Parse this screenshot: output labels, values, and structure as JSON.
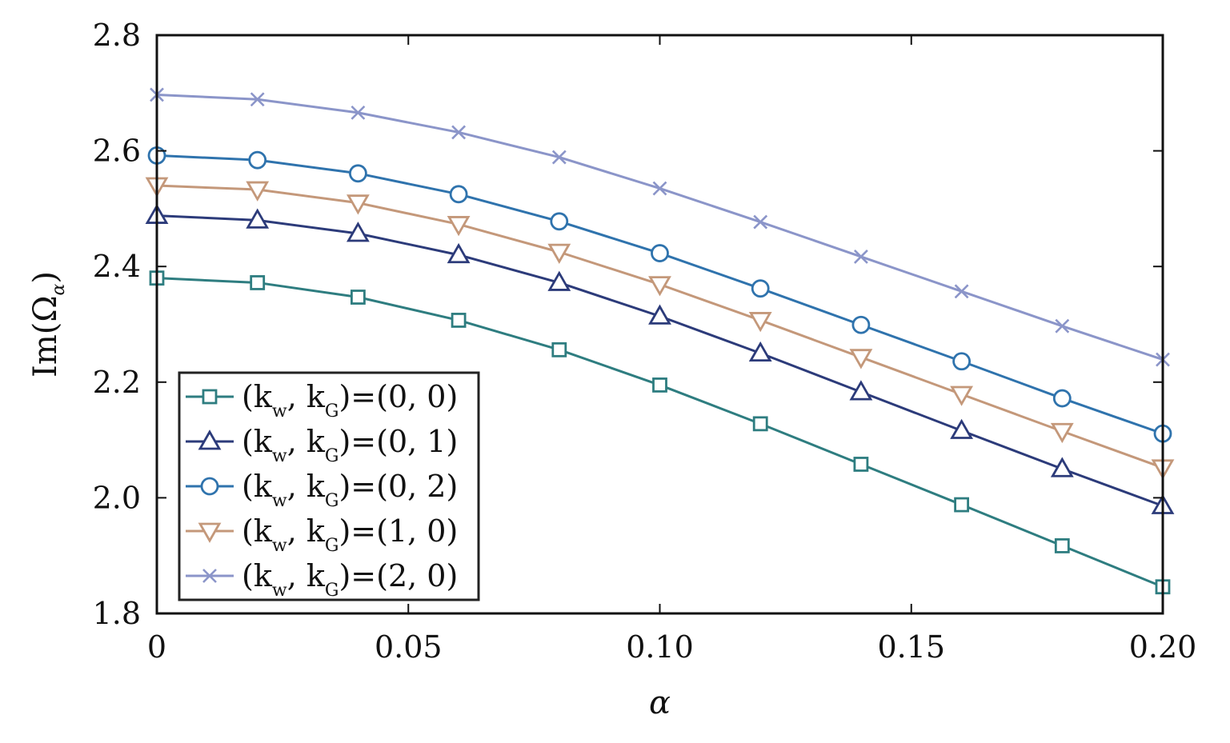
{
  "chart_data": {
    "type": "line",
    "xlabel": "α",
    "ylabel": "Im(Ω",
    "ylabel_sub": "α",
    "xlim": [
      0,
      0.2
    ],
    "ylim": [
      1.8,
      2.8
    ],
    "x_ticks": [
      {
        "value": 0,
        "label": "0"
      },
      {
        "value": 0.05,
        "label": "0.05"
      },
      {
        "value": 0.1,
        "label": "0.10"
      },
      {
        "value": 0.15,
        "label": "0.15"
      },
      {
        "value": 0.2,
        "label": "0.20"
      }
    ],
    "y_ticks": [
      {
        "value": 1.8,
        "label": "1.8"
      },
      {
        "value": 2.0,
        "label": "2.0"
      },
      {
        "value": 2.2,
        "label": "2.2"
      },
      {
        "value": 2.4,
        "label": "2.4"
      },
      {
        "value": 2.6,
        "label": "2.6"
      },
      {
        "value": 2.8,
        "label": "2.8"
      }
    ],
    "grid": false,
    "legend_position": "bottom-left",
    "x": [
      0,
      0.02,
      0.04,
      0.06,
      0.08,
      0.1,
      0.12,
      0.14,
      0.16,
      0.18,
      0.2
    ],
    "series": [
      {
        "name_prefix": "(k",
        "name_sub1": "w",
        "name_mid": ", k",
        "name_sub2": "G",
        "name_suffix": ")=(0, 0)",
        "marker": "square",
        "color": "#2e7d80",
        "values": [
          2.38,
          2.372,
          2.347,
          2.307,
          2.256,
          2.195,
          2.128,
          2.058,
          1.988,
          1.917,
          1.846
        ]
      },
      {
        "name_prefix": "(k",
        "name_sub1": "w",
        "name_mid": ", k",
        "name_sub2": "G",
        "name_suffix": ")=(0, 1)",
        "marker": "triangle-up",
        "color": "#2c3b7a",
        "values": [
          2.488,
          2.48,
          2.457,
          2.42,
          2.372,
          2.314,
          2.25,
          2.183,
          2.116,
          2.05,
          1.986
        ]
      },
      {
        "name_prefix": "(k",
        "name_sub1": "w",
        "name_mid": ", k",
        "name_sub2": "G",
        "name_suffix": ")=(0, 2)",
        "marker": "circle",
        "color": "#2f73ad",
        "values": [
          2.592,
          2.584,
          2.561,
          2.525,
          2.478,
          2.423,
          2.362,
          2.299,
          2.236,
          2.172,
          2.111
        ]
      },
      {
        "name_prefix": "(k",
        "name_sub1": "w",
        "name_mid": ", k",
        "name_sub2": "G",
        "name_suffix": ")=(1, 0)",
        "marker": "triangle-down",
        "color": "#c4987a",
        "values": [
          2.54,
          2.533,
          2.51,
          2.473,
          2.425,
          2.369,
          2.307,
          2.243,
          2.179,
          2.115,
          2.052
        ]
      },
      {
        "name_prefix": "(k",
        "name_sub1": "w",
        "name_mid": ", k",
        "name_sub2": "G",
        "name_suffix": ")=(2, 0)",
        "marker": "x",
        "color": "#8b95c9",
        "values": [
          2.697,
          2.689,
          2.666,
          2.632,
          2.589,
          2.535,
          2.477,
          2.417,
          2.357,
          2.297,
          2.239
        ]
      }
    ]
  }
}
